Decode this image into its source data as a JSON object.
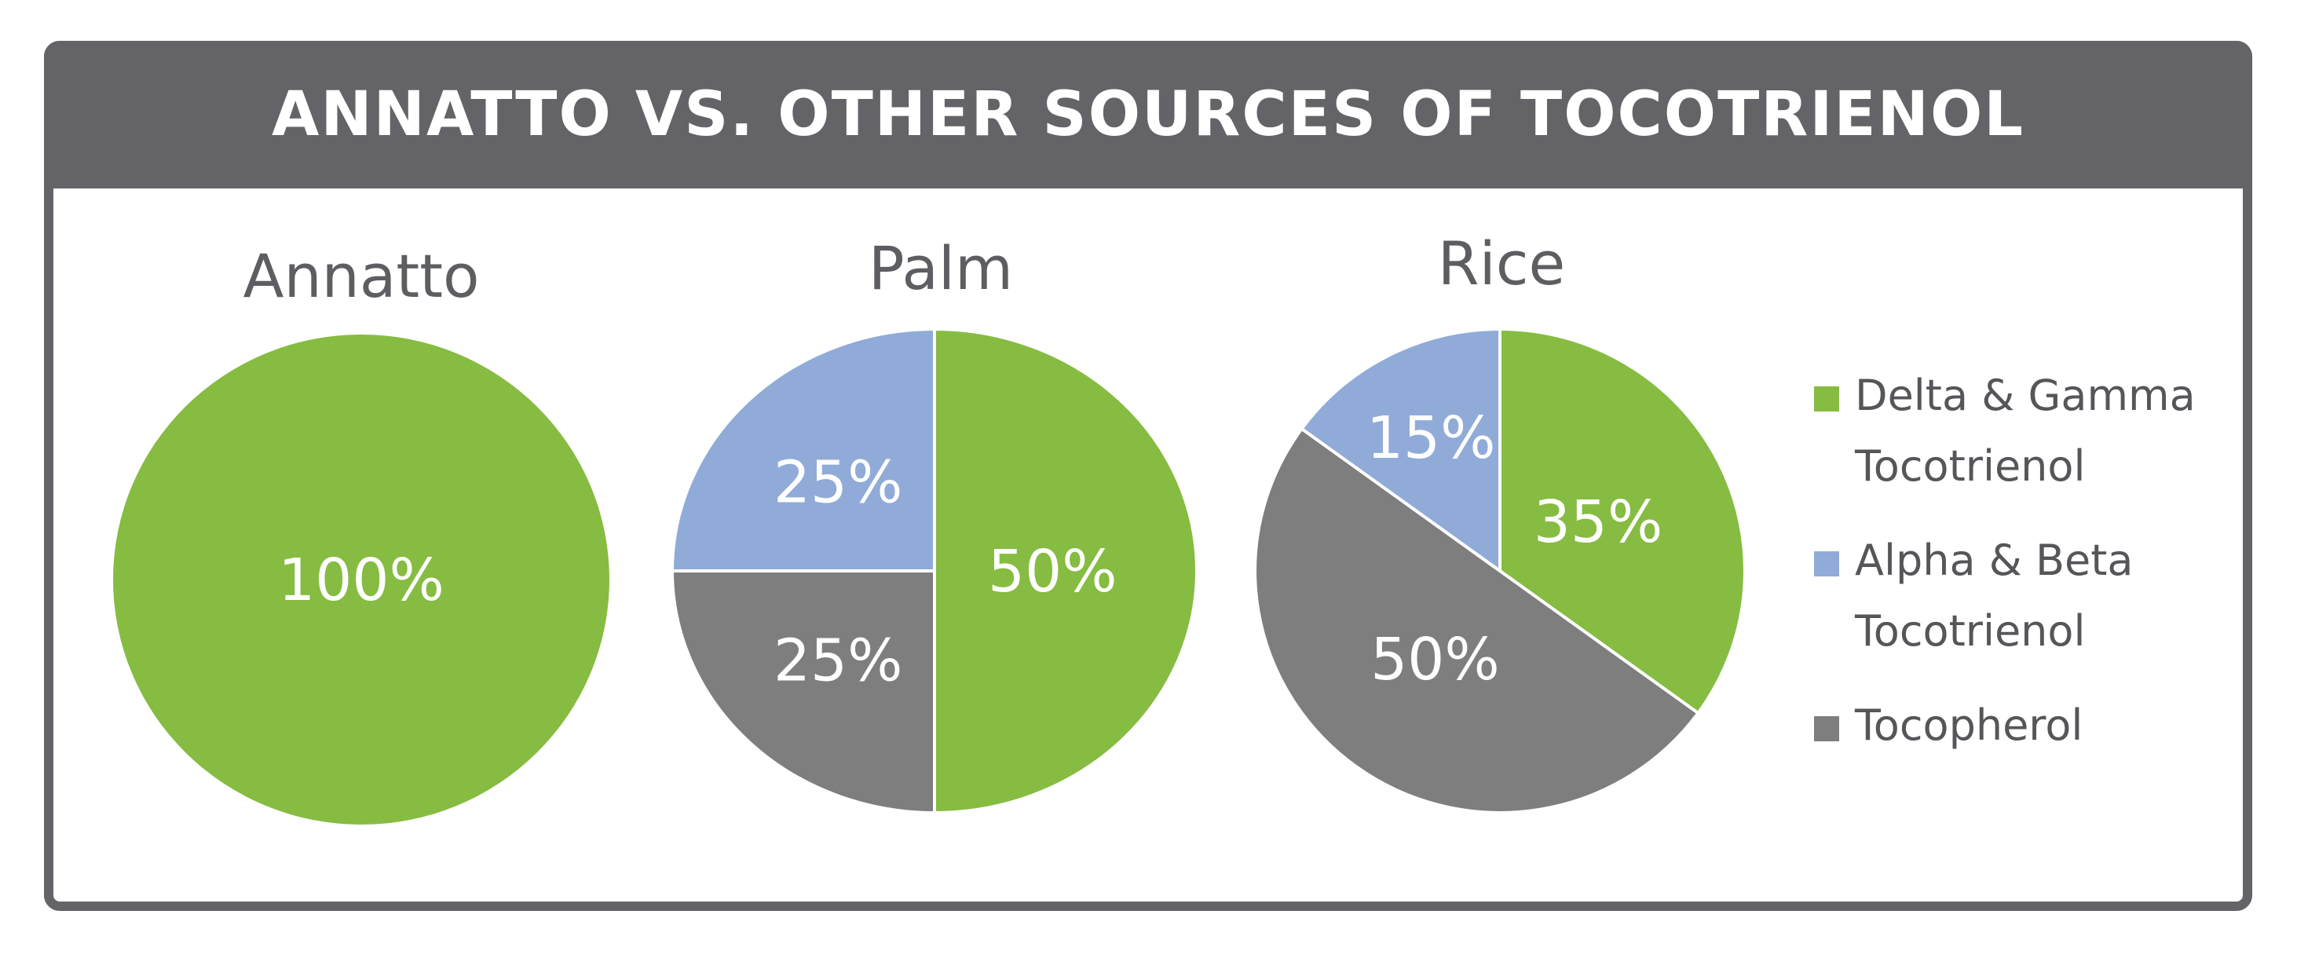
{
  "title": "ANNATTO VS. OTHER SOURCES OF TOCOTRIENOL",
  "colors": {
    "banner": "#646367",
    "delta_gamma": "#86bc41",
    "alpha_beta": "#91abd8",
    "tocopherol": "#7e7e7e"
  },
  "chart_data": [
    {
      "type": "pie",
      "title": "Annatto",
      "slices": [
        {
          "name": "Delta & Gamma Tocotrienol",
          "value": 100,
          "label": "100%",
          "color": "#86bc41"
        }
      ]
    },
    {
      "type": "pie",
      "title": "Palm",
      "slices": [
        {
          "name": "Delta & Gamma Tocotrienol",
          "value": 50,
          "label": "50%",
          "color": "#86bc41"
        },
        {
          "name": "Tocopherol",
          "value": 25,
          "label": "25%",
          "color": "#7e7e7e"
        },
        {
          "name": "Alpha & Beta Tocotrienol",
          "value": 25,
          "label": "25%",
          "color": "#91abd8"
        }
      ]
    },
    {
      "type": "pie",
      "title": "Rice",
      "slices": [
        {
          "name": "Delta & Gamma Tocotrienol",
          "value": 35,
          "label": "35%",
          "color": "#86bc41"
        },
        {
          "name": "Tocopherol",
          "value": 50,
          "label": "50%",
          "color": "#7e7e7e"
        },
        {
          "name": "Alpha & Beta Tocotrienol",
          "value": 15,
          "label": "15%",
          "color": "#91abd8"
        }
      ]
    }
  ],
  "legend": {
    "placement": "right",
    "entries": [
      {
        "lines": [
          "Delta & Gamma",
          "Tocotrienol"
        ],
        "color": "#86bc41"
      },
      {
        "lines": [
          "Alpha & Beta",
          "Tocotrienol"
        ],
        "color": "#91abd8"
      },
      {
        "lines": [
          "Tocopherol"
        ],
        "color": "#7e7e7e"
      }
    ]
  }
}
